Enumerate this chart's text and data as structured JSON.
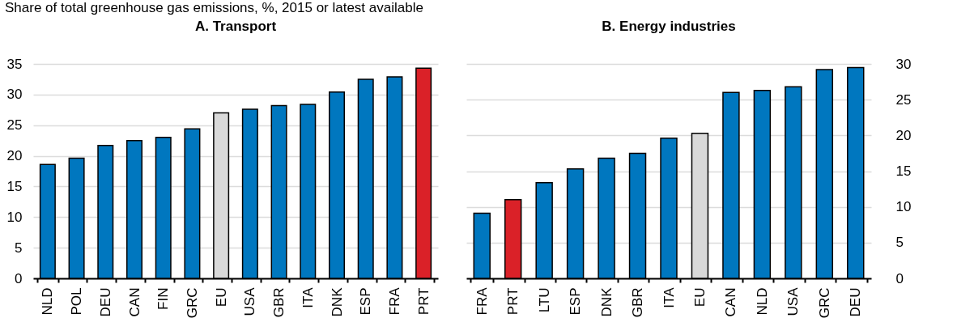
{
  "chart_data": [
    {
      "type": "bar",
      "subtitle": "Share of total greenhouse gas emissions, %, 2015 or latest available",
      "title": "A. Transport",
      "categories": [
        "NLD",
        "POL",
        "DEU",
        "CAN",
        "FIN",
        "GRC",
        "EU",
        "USA",
        "GBR",
        "ITA",
        "DNK",
        "ESP",
        "FRA",
        "PRT"
      ],
      "series": [
        {
          "values": [
            18.6,
            19.6,
            21.7,
            22.5,
            23.0,
            24.4,
            27.0,
            27.6,
            28.2,
            28.4,
            30.4,
            32.5,
            32.9,
            34.3
          ],
          "colors": [
            "#0077bf",
            "#0077bf",
            "#0077bf",
            "#0077bf",
            "#0077bf",
            "#0077bf",
            "#d9d9d9",
            "#0077bf",
            "#0077bf",
            "#0077bf",
            "#0077bf",
            "#0077bf",
            "#0077bf",
            "#da2128"
          ]
        }
      ],
      "ylim": [
        0,
        35
      ],
      "yticks": [
        0,
        5,
        10,
        15,
        20,
        25,
        30,
        35
      ],
      "grid": "y"
    },
    {
      "type": "bar",
      "title": "B. Energy industries",
      "categories": [
        "FRA",
        "PRT",
        "LTU",
        "ESP",
        "DNK",
        "GBR",
        "ITA",
        "EU",
        "CAN",
        "NLD",
        "USA",
        "GRC",
        "DEU"
      ],
      "series": [
        {
          "axis": "y2",
          "values": [
            9.1,
            11.0,
            13.4,
            15.3,
            16.8,
            17.5,
            19.6,
            20.3,
            26.0,
            26.3,
            26.8,
            29.2,
            29.5
          ],
          "colors": [
            "#0077bf",
            "#da2128",
            "#0077bf",
            "#0077bf",
            "#0077bf",
            "#0077bf",
            "#0077bf",
            "#d9d9d9",
            "#0077bf",
            "#0077bf",
            "#0077bf",
            "#0077bf",
            "#0077bf"
          ]
        }
      ],
      "y2lim": [
        0,
        30
      ],
      "y2ticks": [
        0,
        5,
        10,
        15,
        20,
        25,
        30
      ],
      "grid": "y"
    }
  ]
}
